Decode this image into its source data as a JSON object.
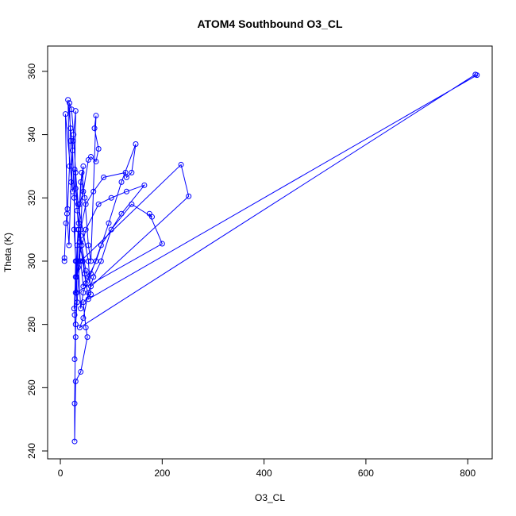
{
  "chart_data": {
    "type": "line",
    "title": "ATOM4 Southbound O3_CL",
    "x_label": "O3_CL",
    "y_label": "Theta (K)",
    "x": [
      8,
      8,
      11,
      14,
      18,
      15,
      20,
      24,
      27,
      30,
      28,
      30,
      28,
      32,
      35,
      40,
      45,
      38,
      33,
      30,
      28,
      28,
      30,
      40,
      53,
      50,
      45,
      60,
      55,
      35,
      30,
      26,
      22,
      18,
      20,
      24,
      10,
      13,
      17,
      21,
      25,
      30,
      27,
      32,
      36,
      42,
      48,
      55,
      60,
      70,
      67,
      75,
      70,
      60,
      55,
      45,
      38,
      33,
      30,
      27,
      35,
      40,
      50,
      65,
      85,
      128,
      130,
      140,
      148,
      120,
      95,
      70,
      55,
      45,
      40,
      35,
      50,
      75,
      100,
      130,
      165,
      120,
      80,
      60,
      45,
      40,
      237,
      252,
      60,
      50,
      42,
      36,
      32,
      30,
      200,
      175,
      180,
      140,
      100,
      80,
      65,
      55,
      45,
      38,
      815,
      818,
      55,
      48,
      40,
      35,
      30,
      28,
      33,
      38,
      44,
      50
    ],
    "series": [
      {
        "color": "#0000ff",
        "values": [
          300,
          301,
          312,
          316.5,
          330,
          351,
          342,
          335,
          320,
          300,
          283,
          276,
          269,
          290,
          310,
          325,
          330,
          300,
          287,
          280,
          255,
          243,
          262,
          265,
          276,
          279,
          287,
          289.5,
          300,
          318,
          328,
          340,
          348,
          350,
          338,
          322,
          346.5,
          315,
          305,
          325,
          338,
          347.5,
          310,
          295,
          312,
          328,
          320,
          305,
          300,
          346,
          342,
          335.5,
          331.5,
          333,
          332,
          322,
          318,
          305,
          295,
          285,
          298,
          310,
          318,
          322,
          326.5,
          328,
          326.5,
          328,
          337,
          325,
          312,
          300,
          295,
          290,
          285,
          300,
          310,
          318,
          320,
          322,
          324,
          315,
          305,
          296,
          292,
          300,
          330.5,
          320.5,
          292,
          297,
          305,
          310,
          300,
          290,
          305.5,
          315,
          314,
          318,
          310,
          300,
          295,
          290,
          282,
          279,
          359,
          358.8,
          288,
          296,
          308,
          318,
          323,
          329,
          316,
          306,
          300,
          293
        ]
      }
    ],
    "xlim": [
      -25,
      848
    ],
    "ylim": [
      237.5,
      368
    ],
    "xticks": [
      0,
      200,
      400,
      600,
      800
    ],
    "yticks": [
      240,
      260,
      280,
      300,
      320,
      340,
      360
    ],
    "grid": false
  }
}
